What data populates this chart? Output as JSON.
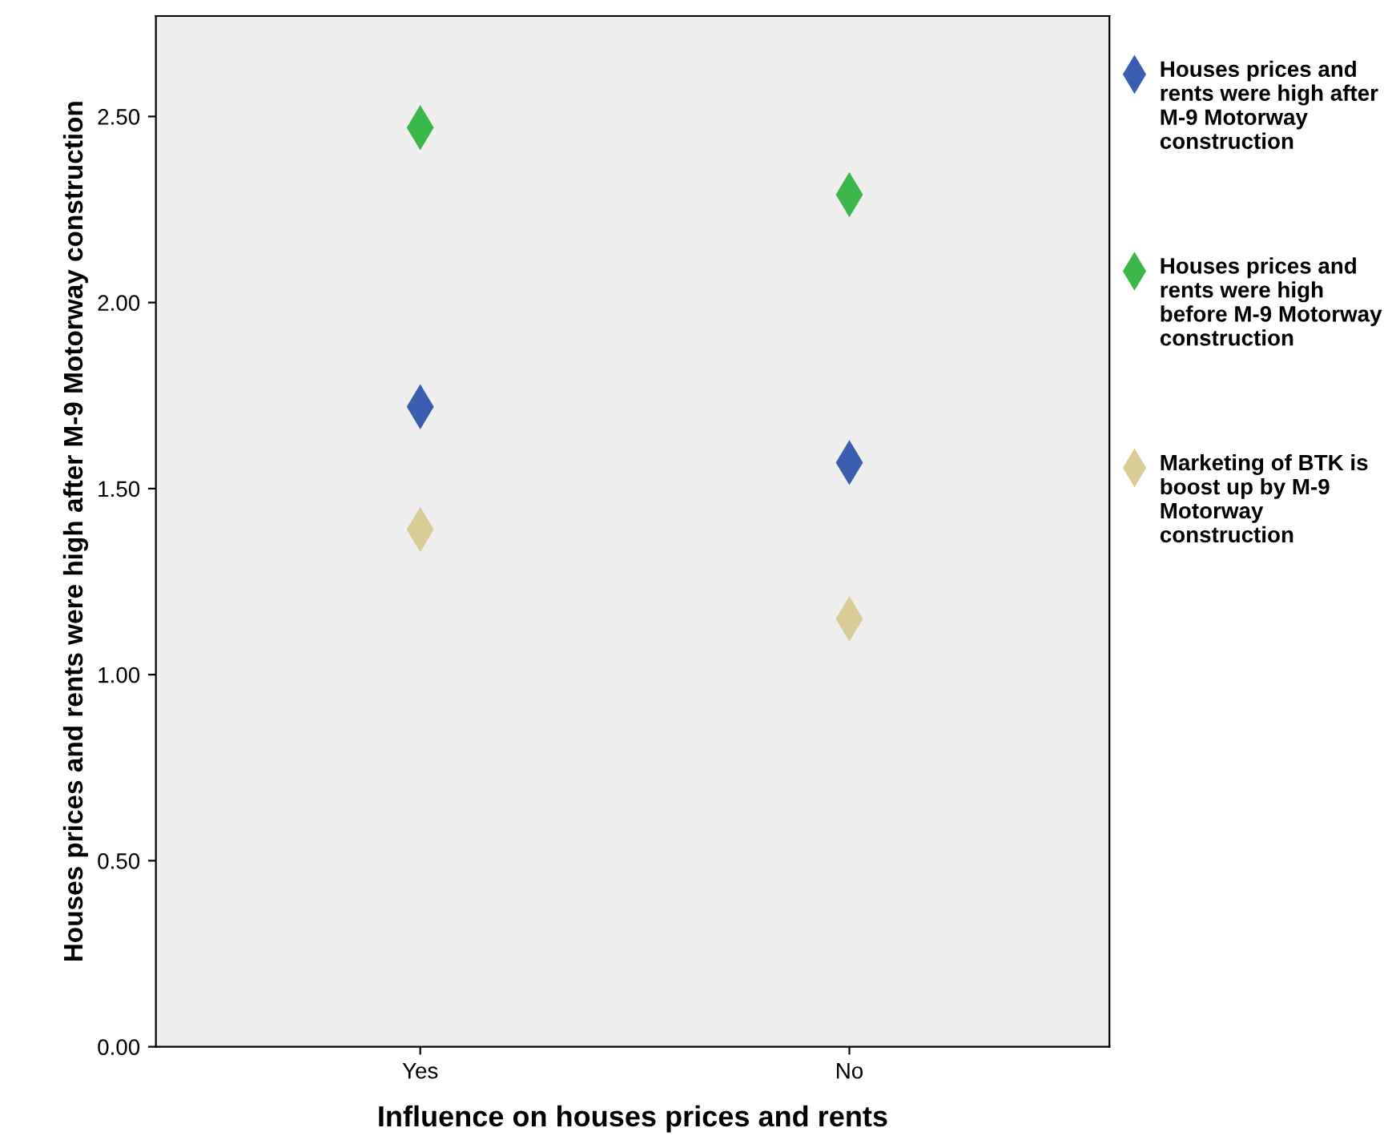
{
  "chart_data": {
    "type": "scatter",
    "xlabel": "Influence on houses prices and rents",
    "ylabel": "Houses prices and rents were high after M-9 Motorway construction",
    "categories": [
      "Yes",
      "No"
    ],
    "series": [
      {
        "name": "Houses prices and rents were high after M-9 Motorway construction",
        "color": "#3a5fb0",
        "values": [
          1.72,
          1.57
        ]
      },
      {
        "name": "Houses prices and rents were high before M-9 Motorway construction",
        "color": "#3cb84a",
        "values": [
          2.47,
          2.29
        ]
      },
      {
        "name": "Marketing of BTK is boost up by M-9 Motorway construction",
        "color": "#d8cc94",
        "values": [
          1.39,
          1.15
        ]
      }
    ],
    "ylim": [
      0,
      2.77
    ],
    "yticks": [
      {
        "value": 0,
        "label": "0.00"
      },
      {
        "value": 0.5,
        "label": "0.50"
      },
      {
        "value": 1,
        "label": "1.00"
      },
      {
        "value": 1.5,
        "label": "1.50"
      },
      {
        "value": 2,
        "label": "2.00"
      },
      {
        "value": 2.5,
        "label": "2.50"
      }
    ],
    "marker": "diamond",
    "legend": "right",
    "grid": false
  }
}
